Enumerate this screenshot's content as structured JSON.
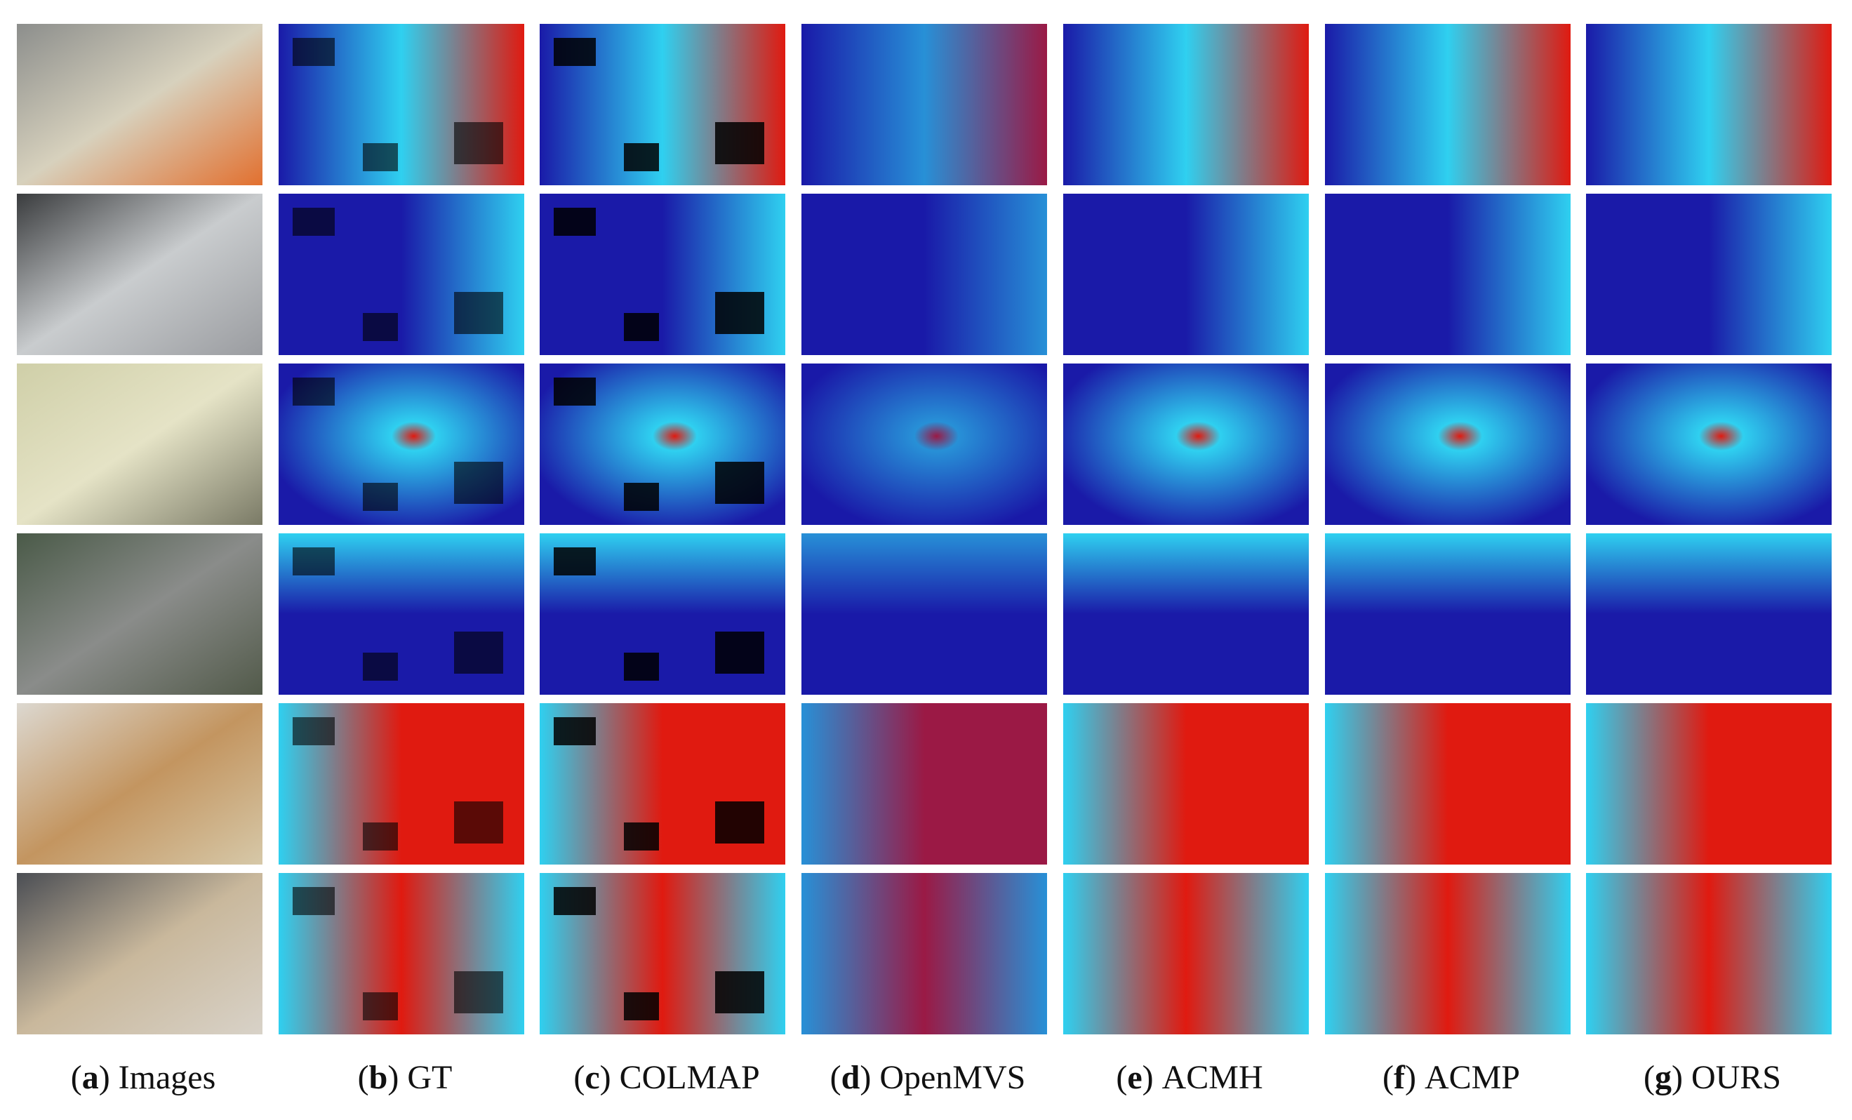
{
  "figure": {
    "columns": [
      {
        "letter": "a",
        "label": "Images"
      },
      {
        "letter": "b",
        "label": "GT"
      },
      {
        "letter": "c",
        "label": "COLMAP"
      },
      {
        "letter": "d",
        "label": "OpenMVS"
      },
      {
        "letter": "e",
        "label": "ACMH"
      },
      {
        "letter": "f",
        "label": "ACMP"
      },
      {
        "letter": "g",
        "label": "OURS"
      }
    ],
    "rows": 6,
    "colors": {
      "depth_near": "#1a1aa8",
      "depth_mid": "#2fd0f0",
      "depth_far": "#e01a10",
      "invalid": "#000000",
      "gap": "#ffffff"
    }
  }
}
